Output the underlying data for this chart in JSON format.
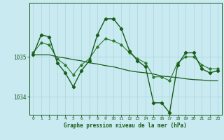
{
  "title": "Graphe pression niveau de la mer (hPa)",
  "background_color": "#c8eaf0",
  "grid_color": "#b0d8e0",
  "line_color_dark": "#1a5c1a",
  "line_color_medium": "#2d7a2d",
  "xlim": [
    -0.5,
    23.5
  ],
  "ylim": [
    1033.55,
    1036.35
  ],
  "yticks": [
    1034,
    1035
  ],
  "xticks": [
    0,
    1,
    2,
    3,
    4,
    5,
    6,
    7,
    8,
    9,
    10,
    11,
    12,
    13,
    14,
    15,
    16,
    17,
    18,
    19,
    20,
    21,
    22,
    23
  ],
  "series1_x": [
    0,
    1,
    2,
    3,
    4,
    5,
    6,
    7,
    8,
    9,
    10,
    11,
    12,
    13,
    14,
    15,
    16,
    17,
    18,
    19,
    20,
    21,
    22,
    23
  ],
  "series1_y": [
    1035.05,
    1035.55,
    1035.5,
    1034.85,
    1034.6,
    1034.25,
    1034.65,
    1034.9,
    1035.55,
    1035.95,
    1035.95,
    1035.7,
    1035.15,
    1034.9,
    1034.75,
    1033.85,
    1033.85,
    1033.6,
    1034.8,
    1035.1,
    1035.1,
    1034.7,
    1034.6,
    1034.65
  ],
  "series2_x": [
    0,
    1,
    2,
    3,
    4,
    5,
    6,
    7,
    8,
    9,
    10,
    11,
    12,
    13,
    14,
    15,
    16,
    17,
    18,
    19,
    20,
    21,
    22,
    23
  ],
  "series2_y": [
    1035.1,
    1035.35,
    1035.3,
    1034.95,
    1034.8,
    1034.55,
    1034.8,
    1034.95,
    1035.25,
    1035.45,
    1035.4,
    1035.3,
    1035.1,
    1034.95,
    1034.85,
    1034.5,
    1034.5,
    1034.4,
    1034.85,
    1035.0,
    1035.0,
    1034.8,
    1034.7,
    1034.7
  ],
  "series3_x": [
    0,
    1,
    2,
    3,
    4,
    5,
    6,
    7,
    8,
    9,
    10,
    11,
    12,
    13,
    14,
    15,
    16,
    17,
    18,
    19,
    20,
    21,
    22,
    23
  ],
  "series3_y": [
    1035.05,
    1035.05,
    1035.05,
    1035.0,
    1034.97,
    1034.93,
    1034.9,
    1034.85,
    1034.82,
    1034.78,
    1034.75,
    1034.7,
    1034.65,
    1034.62,
    1034.6,
    1034.57,
    1034.52,
    1034.5,
    1034.48,
    1034.45,
    1034.43,
    1034.42,
    1034.4,
    1034.4
  ]
}
